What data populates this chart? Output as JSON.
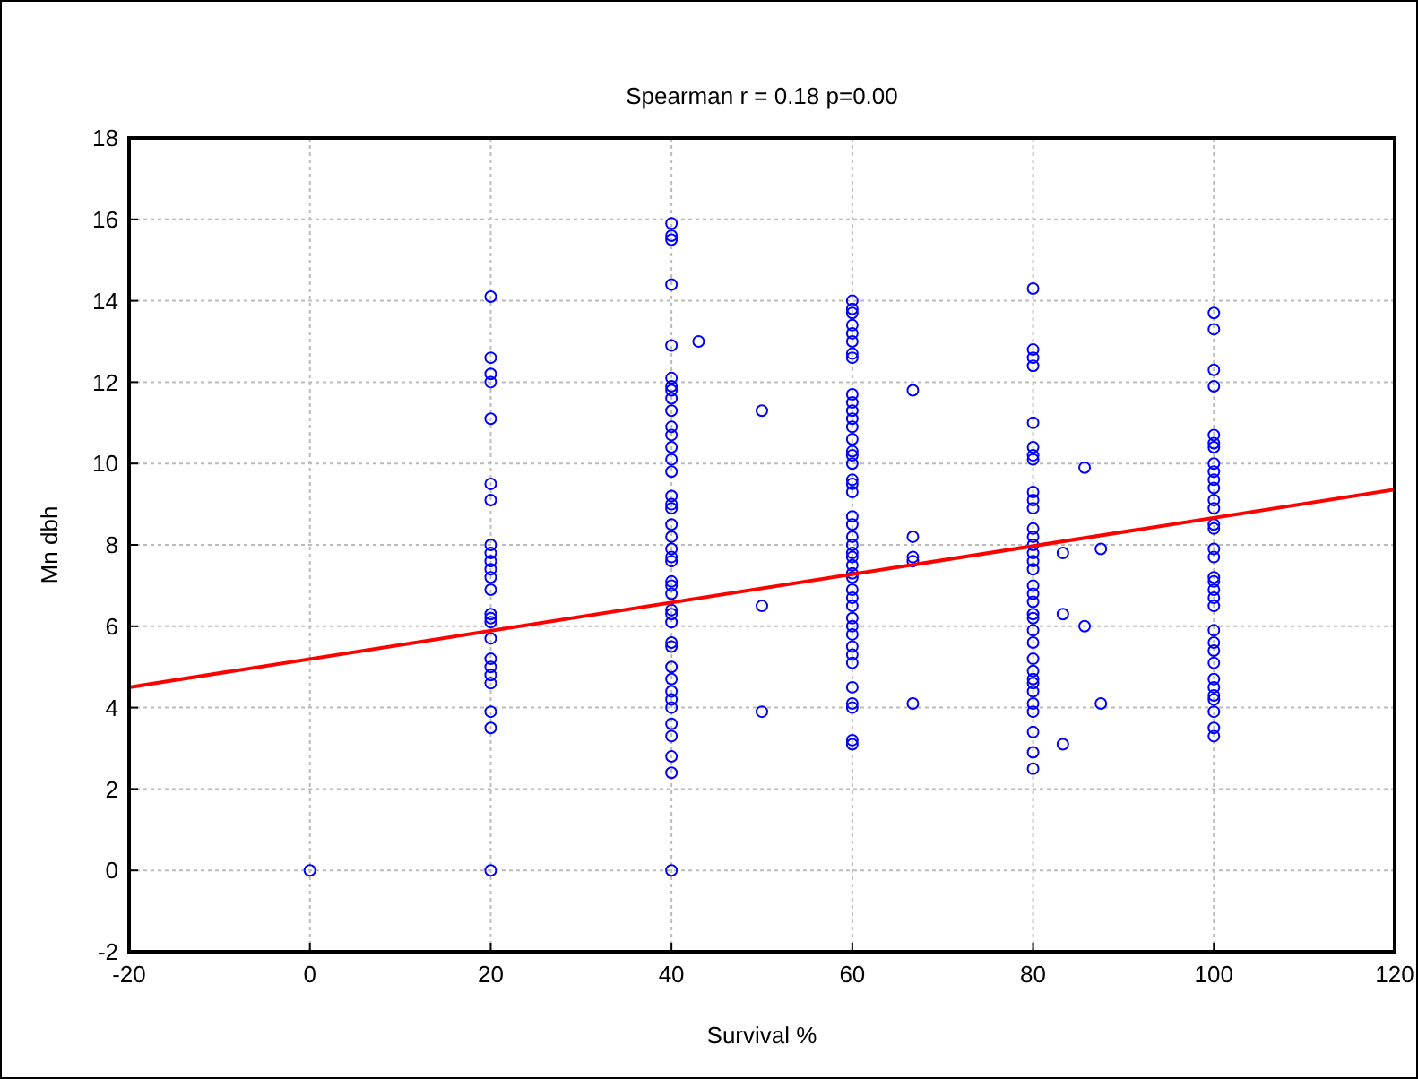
{
  "chart_data": {
    "type": "scatter",
    "title": "Spearman r = 0.18 p=0.00",
    "xlabel": "Survival %",
    "ylabel": "Mn dbh",
    "xlim": [
      -20,
      120
    ],
    "ylim": [
      -2,
      18
    ],
    "xticks": [
      -20,
      0,
      20,
      40,
      60,
      80,
      100,
      120
    ],
    "yticks": [
      -2,
      0,
      2,
      4,
      6,
      8,
      10,
      12,
      14,
      16,
      18
    ],
    "grid": true,
    "series": [
      {
        "color": "#0000ff",
        "marker": "circle",
        "x": [
          0,
          20,
          20,
          20,
          20,
          20,
          20,
          20,
          20,
          20,
          20,
          20,
          20,
          20,
          20,
          20,
          20,
          20,
          20,
          20,
          20,
          20,
          20,
          20,
          20,
          40,
          40,
          40,
          40,
          40,
          40,
          40,
          40,
          40,
          40,
          40,
          40,
          40,
          40,
          40,
          40,
          40,
          40,
          40,
          40,
          40,
          40,
          40,
          40,
          40,
          40,
          40,
          40,
          40,
          40,
          40,
          40,
          40,
          40,
          40,
          40,
          40,
          40,
          40,
          40,
          40,
          43,
          50,
          50,
          50,
          60,
          60,
          60,
          60,
          60,
          60,
          60,
          60,
          60,
          60,
          60,
          60,
          60,
          60,
          60,
          60,
          60,
          60,
          60,
          60,
          60,
          60,
          60,
          60,
          60,
          60,
          60,
          60,
          60,
          60,
          60,
          60,
          60,
          60,
          60,
          60,
          60,
          60,
          60,
          60,
          60,
          60,
          60,
          66.7,
          66.7,
          66.7,
          66.7,
          66.7,
          80,
          80,
          80,
          80,
          80,
          80,
          80,
          80,
          80,
          80,
          80,
          80,
          80,
          80,
          80,
          80,
          80,
          80,
          80,
          80,
          80,
          80,
          80,
          80,
          80,
          80,
          80,
          80,
          80,
          80,
          80,
          80,
          80,
          80,
          83.3,
          83.3,
          83.3,
          85.7,
          85.7,
          87.5,
          87.5,
          100,
          100,
          100,
          100,
          100,
          100,
          100,
          100,
          100,
          100,
          100,
          100,
          100,
          100,
          100,
          100,
          100,
          100,
          100,
          100,
          100,
          100,
          100,
          100,
          100,
          100,
          100,
          100,
          100,
          100,
          100,
          100,
          100
        ],
        "values": [
          0,
          14.1,
          12.6,
          12.2,
          12.0,
          11.1,
          9.5,
          9.1,
          8.0,
          7.8,
          7.6,
          7.4,
          7.2,
          6.9,
          6.3,
          6.2,
          6.1,
          5.7,
          5.2,
          5.0,
          4.8,
          4.6,
          3.9,
          3.5,
          0,
          15.9,
          15.6,
          15.5,
          14.4,
          12.9,
          12.1,
          11.9,
          11.8,
          11.6,
          11.3,
          10.9,
          10.7,
          10.4,
          10.1,
          9.8,
          9.2,
          9.0,
          8.9,
          8.5,
          8.2,
          7.9,
          7.7,
          7.6,
          7.1,
          7.0,
          6.8,
          6.4,
          6.3,
          6.1,
          5.6,
          5.5,
          5.0,
          4.7,
          4.4,
          4.2,
          4.0,
          3.6,
          3.3,
          2.8,
          2.4,
          0,
          13.0,
          11.3,
          6.5,
          3.9,
          14.0,
          13.8,
          13.7,
          13.4,
          13.2,
          13.0,
          12.7,
          12.6,
          11.7,
          11.5,
          11.3,
          11.1,
          10.9,
          10.6,
          10.3,
          10.2,
          10.0,
          9.6,
          9.5,
          9.3,
          8.7,
          8.5,
          8.2,
          8.0,
          7.8,
          7.7,
          7.5,
          7.3,
          7.2,
          6.9,
          6.7,
          6.5,
          6.2,
          6.0,
          5.8,
          5.5,
          5.3,
          5.1,
          4.5,
          4.1,
          4.0,
          3.2,
          3.1,
          11.8,
          8.2,
          7.7,
          7.6,
          4.1,
          14.3,
          12.8,
          12.6,
          12.4,
          11.0,
          10.4,
          10.2,
          10.1,
          9.3,
          9.1,
          8.9,
          8.4,
          8.2,
          8.0,
          7.8,
          7.6,
          7.4,
          7.0,
          6.8,
          6.6,
          6.3,
          6.2,
          5.9,
          5.6,
          5.2,
          4.9,
          4.7,
          4.6,
          4.4,
          4.1,
          3.9,
          3.4,
          2.9,
          2.5,
          7.8,
          6.3,
          3.1,
          9.9,
          6.0,
          7.9,
          4.1,
          13.7,
          13.3,
          12.3,
          11.9,
          10.7,
          10.5,
          10.4,
          10.0,
          9.8,
          9.6,
          9.4,
          9.1,
          8.9,
          8.5,
          8.4,
          7.9,
          7.7,
          7.2,
          7.1,
          6.9,
          6.7,
          6.5,
          5.9,
          5.6,
          5.4,
          5.1,
          4.7,
          4.5,
          4.3,
          4.2,
          3.9,
          3.5,
          3.3
        ]
      },
      {
        "type": "line",
        "color": "#ff0000",
        "x": [
          -20,
          120
        ],
        "values": [
          4.5,
          9.36
        ]
      }
    ]
  }
}
